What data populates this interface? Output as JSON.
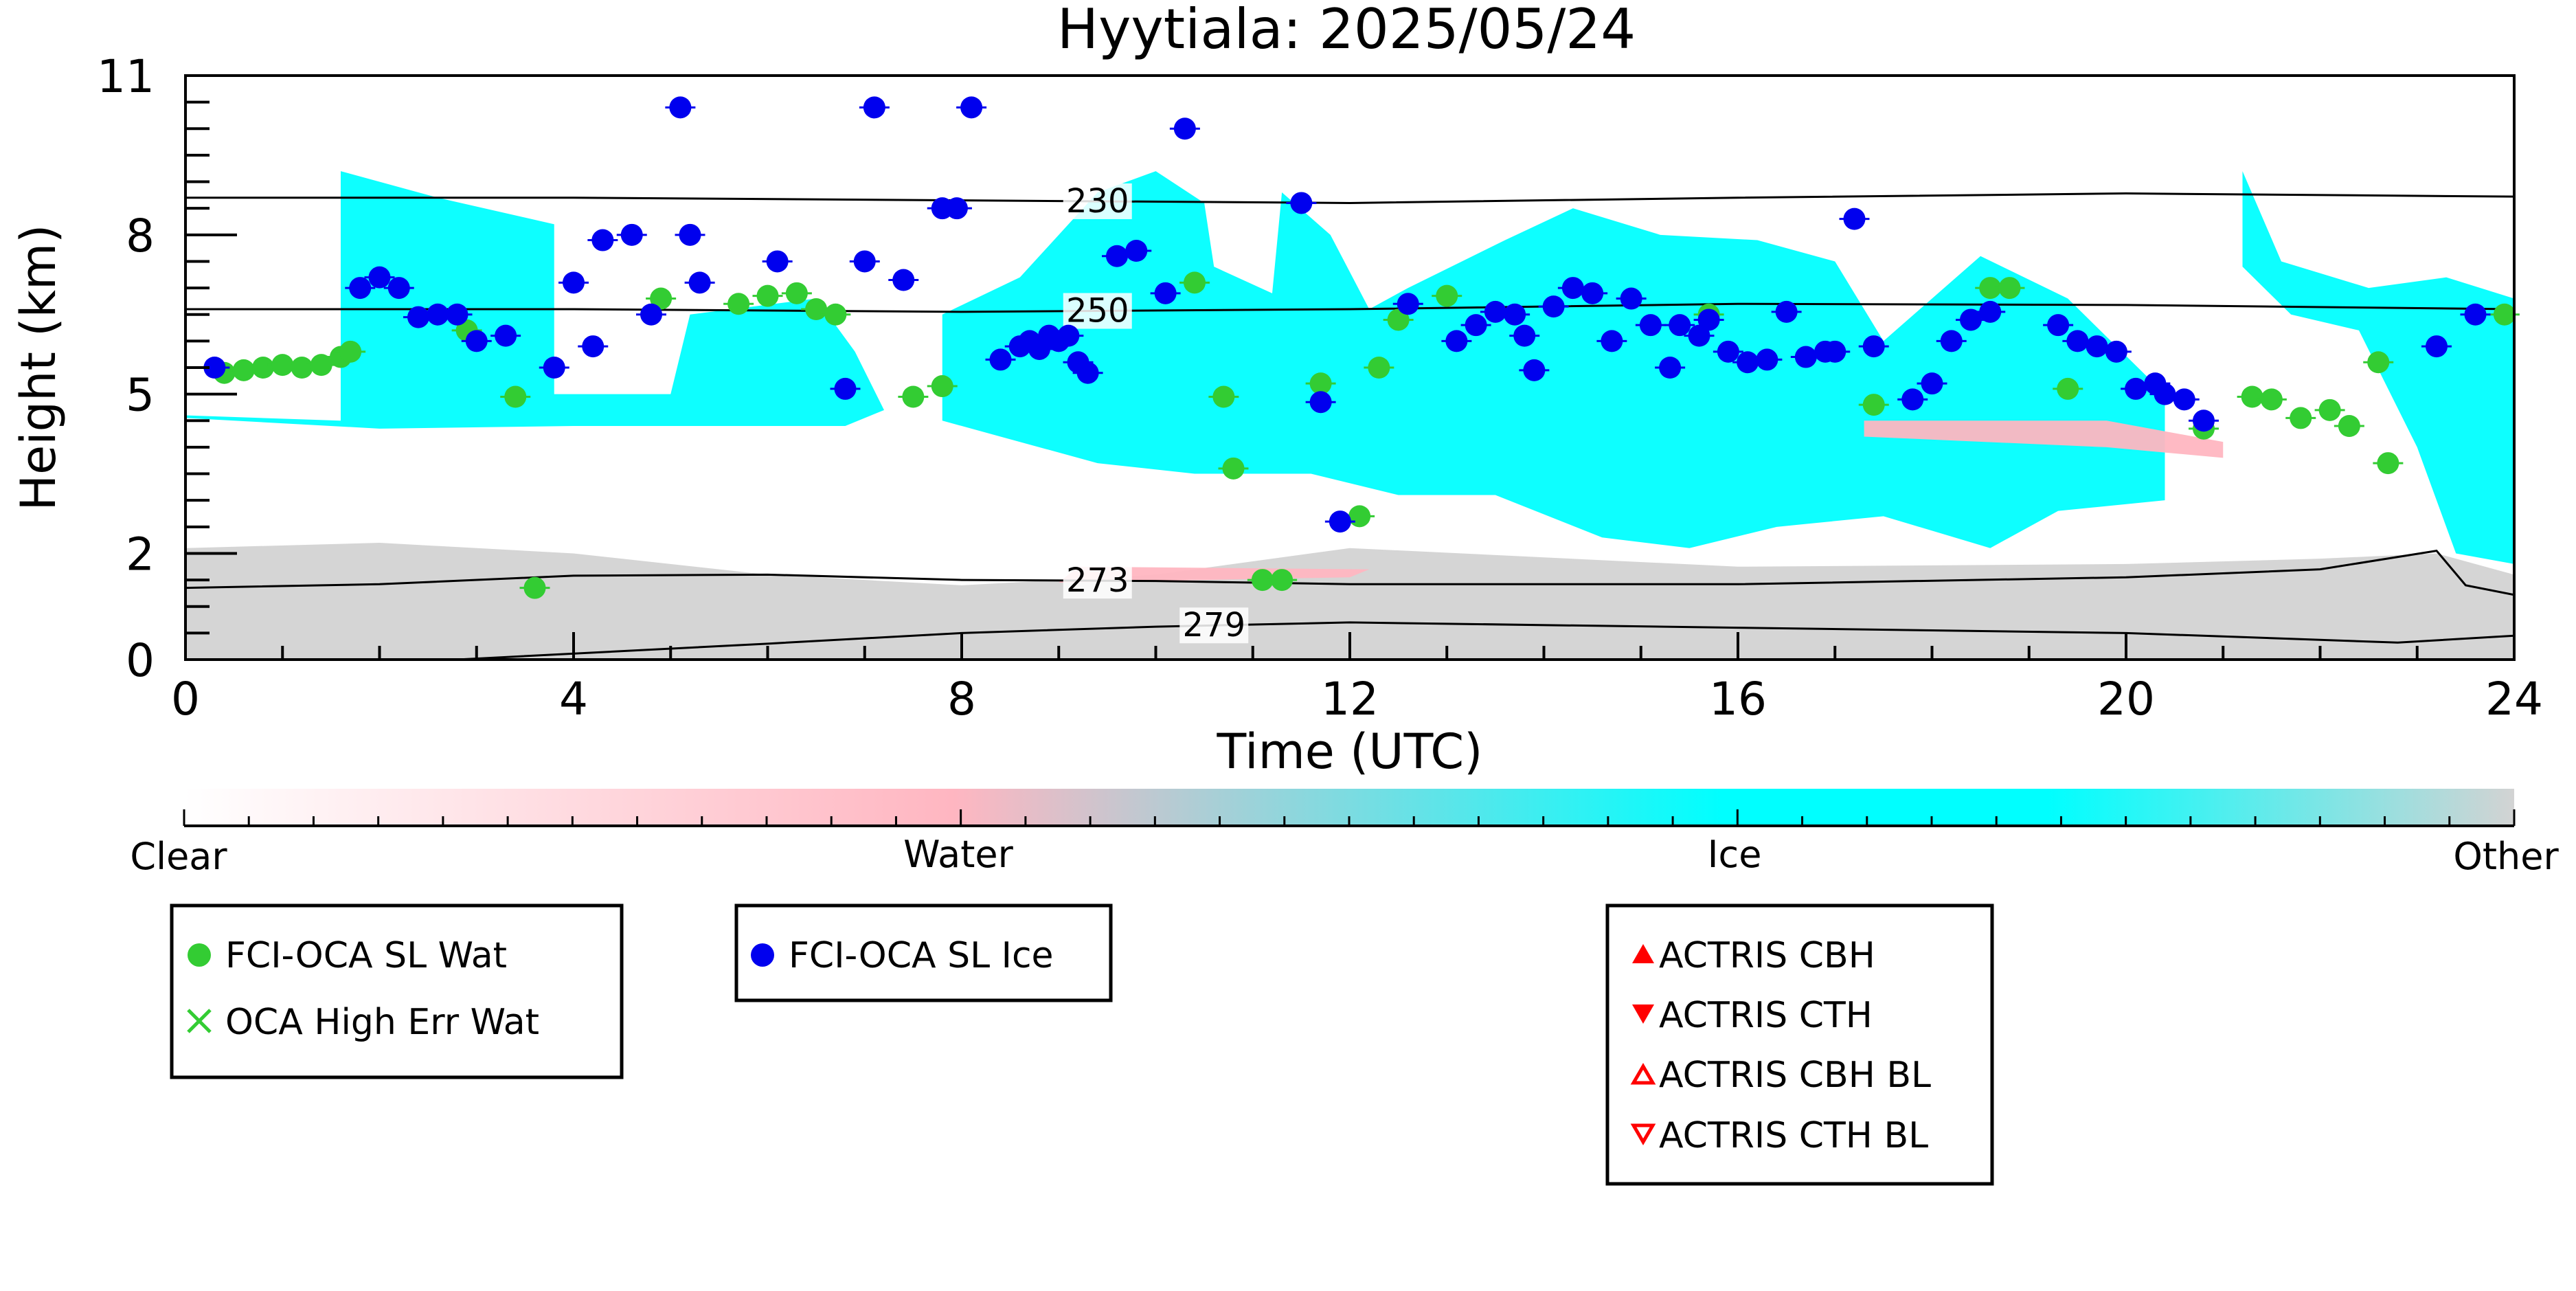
{
  "chart_data": {
    "type": "scatter",
    "title": "Hyytiala: 2025/05/24",
    "xlabel": "Time (UTC)",
    "ylabel": "Height (km)",
    "xlim": [
      0,
      24
    ],
    "ylim": [
      0,
      11
    ],
    "xticks": [
      0,
      4,
      8,
      12,
      16,
      20,
      24
    ],
    "yticks": [
      0,
      2,
      5,
      8,
      11
    ],
    "grid": false,
    "colorbar": {
      "labels": [
        "Clear",
        "Water",
        "Ice",
        "Other"
      ],
      "colors": [
        "#ffffff",
        "#ffb6c1",
        "#00ffff",
        "#d3d3d3"
      ]
    },
    "contours": [
      {
        "label": "230",
        "label_x": 9.4,
        "points": [
          [
            0,
            8.7
          ],
          [
            4,
            8.7
          ],
          [
            8,
            8.65
          ],
          [
            12,
            8.6
          ],
          [
            16,
            8.7
          ],
          [
            20,
            8.78
          ],
          [
            24,
            8.72
          ]
        ]
      },
      {
        "label": "250",
        "label_x": 9.4,
        "points": [
          [
            0,
            6.6
          ],
          [
            4,
            6.6
          ],
          [
            8,
            6.55
          ],
          [
            12,
            6.6
          ],
          [
            16,
            6.7
          ],
          [
            20,
            6.68
          ],
          [
            24,
            6.6
          ]
        ]
      },
      {
        "label": "273",
        "label_x": 9.4,
        "points": [
          [
            0,
            1.35
          ],
          [
            2,
            1.42
          ],
          [
            4,
            1.58
          ],
          [
            6,
            1.6
          ],
          [
            8,
            1.5
          ],
          [
            10,
            1.48
          ],
          [
            12,
            1.42
          ],
          [
            16,
            1.42
          ],
          [
            20,
            1.55
          ],
          [
            22,
            1.7
          ],
          [
            23.2,
            2.05
          ],
          [
            23.5,
            1.4
          ],
          [
            24,
            1.22
          ]
        ]
      },
      {
        "label": "279",
        "label_x": 10.6,
        "points": [
          [
            2.8,
            0
          ],
          [
            6,
            0.3
          ],
          [
            8,
            0.5
          ],
          [
            10,
            0.62
          ],
          [
            12,
            0.7
          ],
          [
            16,
            0.6
          ],
          [
            20,
            0.5
          ],
          [
            22.8,
            0.32
          ],
          [
            24,
            0.45
          ]
        ]
      }
    ],
    "series": [
      {
        "name": "FCI-OCA SL Wat",
        "color": "#33cc33",
        "marker": "circle",
        "points": [
          [
            0.4,
            5.4
          ],
          [
            0.6,
            5.45
          ],
          [
            0.8,
            5.5
          ],
          [
            1.0,
            5.55
          ],
          [
            1.2,
            5.5
          ],
          [
            1.4,
            5.55
          ],
          [
            1.6,
            5.7
          ],
          [
            1.7,
            5.8
          ],
          [
            2.9,
            6.2
          ],
          [
            3.4,
            4.95
          ],
          [
            3.6,
            1.35
          ],
          [
            4.9,
            6.8
          ],
          [
            5.7,
            6.7
          ],
          [
            6.0,
            6.85
          ],
          [
            6.3,
            6.9
          ],
          [
            6.5,
            6.6
          ],
          [
            6.7,
            6.5
          ],
          [
            7.5,
            4.95
          ],
          [
            7.8,
            5.15
          ],
          [
            10.4,
            7.1
          ],
          [
            10.7,
            4.95
          ],
          [
            10.8,
            3.6
          ],
          [
            11.1,
            1.5
          ],
          [
            11.3,
            1.5
          ],
          [
            11.7,
            5.2
          ],
          [
            12.1,
            2.7
          ],
          [
            12.3,
            5.5
          ],
          [
            12.5,
            6.4
          ],
          [
            13.0,
            6.85
          ],
          [
            15.7,
            6.5
          ],
          [
            17.4,
            4.8
          ],
          [
            18.6,
            7.0
          ],
          [
            18.8,
            7.0
          ],
          [
            19.4,
            5.1
          ],
          [
            20.8,
            4.35
          ],
          [
            21.3,
            4.95
          ],
          [
            21.5,
            4.9
          ],
          [
            21.8,
            4.55
          ],
          [
            22.1,
            4.7
          ],
          [
            22.3,
            4.4
          ],
          [
            22.6,
            5.6
          ],
          [
            22.7,
            3.7
          ],
          [
            23.9,
            6.5
          ]
        ]
      },
      {
        "name": "OCA High Err Wat",
        "color": "#33cc33",
        "marker": "x",
        "points": []
      },
      {
        "name": "FCI-OCA SL Ice",
        "color": "#0000ee",
        "marker": "circle",
        "points": [
          [
            0.3,
            5.5
          ],
          [
            1.8,
            7.0
          ],
          [
            2.0,
            7.2
          ],
          [
            2.2,
            7.0
          ],
          [
            2.4,
            6.45
          ],
          [
            2.6,
            6.5
          ],
          [
            2.8,
            6.5
          ],
          [
            3.0,
            6.0
          ],
          [
            3.3,
            6.1
          ],
          [
            3.8,
            5.5
          ],
          [
            4.0,
            7.1
          ],
          [
            4.2,
            5.9
          ],
          [
            4.3,
            7.9
          ],
          [
            4.6,
            8.0
          ],
          [
            4.8,
            6.5
          ],
          [
            5.1,
            10.4
          ],
          [
            5.2,
            8.0
          ],
          [
            5.3,
            7.1
          ],
          [
            6.1,
            7.5
          ],
          [
            6.8,
            5.1
          ],
          [
            7.0,
            7.5
          ],
          [
            7.1,
            10.4
          ],
          [
            7.4,
            7.15
          ],
          [
            7.8,
            8.5
          ],
          [
            7.95,
            8.5
          ],
          [
            8.1,
            10.4
          ],
          [
            8.4,
            5.65
          ],
          [
            8.6,
            5.9
          ],
          [
            8.7,
            6.0
          ],
          [
            8.8,
            5.85
          ],
          [
            8.9,
            6.1
          ],
          [
            9.0,
            6.0
          ],
          [
            9.1,
            6.1
          ],
          [
            9.2,
            5.6
          ],
          [
            9.3,
            5.4
          ],
          [
            9.6,
            7.6
          ],
          [
            9.8,
            7.7
          ],
          [
            10.1,
            6.9
          ],
          [
            10.3,
            10.0
          ],
          [
            11.5,
            8.6
          ],
          [
            11.7,
            4.85
          ],
          [
            11.9,
            2.6
          ],
          [
            12.6,
            6.7
          ],
          [
            13.1,
            6.0
          ],
          [
            13.3,
            6.3
          ],
          [
            13.5,
            6.55
          ],
          [
            13.7,
            6.5
          ],
          [
            13.8,
            6.1
          ],
          [
            13.9,
            5.45
          ],
          [
            14.1,
            6.65
          ],
          [
            14.3,
            7.0
          ],
          [
            14.5,
            6.9
          ],
          [
            14.7,
            6.0
          ],
          [
            14.9,
            6.8
          ],
          [
            15.1,
            6.3
          ],
          [
            15.3,
            5.5
          ],
          [
            15.4,
            6.3
          ],
          [
            15.6,
            6.1
          ],
          [
            15.7,
            6.4
          ],
          [
            15.9,
            5.8
          ],
          [
            16.1,
            5.6
          ],
          [
            16.3,
            5.65
          ],
          [
            16.5,
            6.55
          ],
          [
            16.7,
            5.7
          ],
          [
            16.9,
            5.8
          ],
          [
            17.0,
            5.8
          ],
          [
            17.2,
            8.3
          ],
          [
            17.4,
            5.9
          ],
          [
            17.8,
            4.9
          ],
          [
            18.0,
            5.2
          ],
          [
            18.2,
            6.0
          ],
          [
            18.4,
            6.4
          ],
          [
            18.6,
            6.55
          ],
          [
            19.3,
            6.3
          ],
          [
            19.5,
            6.0
          ],
          [
            19.7,
            5.9
          ],
          [
            19.9,
            5.8
          ],
          [
            20.1,
            5.1
          ],
          [
            20.3,
            5.2
          ],
          [
            20.4,
            5.0
          ],
          [
            20.6,
            4.9
          ],
          [
            20.8,
            4.5
          ],
          [
            23.2,
            5.9
          ],
          [
            23.6,
            6.5
          ]
        ]
      },
      {
        "name": "ACTRIS CBH",
        "color": "#ff0000",
        "marker": "triangle-up",
        "points": []
      },
      {
        "name": "ACTRIS CTH",
        "color": "#ff0000",
        "marker": "triangle-down",
        "points": []
      },
      {
        "name": "ACTRIS CBH BL",
        "color": "#ff0000",
        "marker": "triangle-up-open",
        "points": []
      },
      {
        "name": "ACTRIS CTH BL",
        "color": "#ff0000",
        "marker": "triangle-down-open",
        "points": []
      }
    ],
    "legends": [
      {
        "position": "bottom-left",
        "entries": [
          "FCI-OCA SL Wat",
          "OCA High Err Wat"
        ]
      },
      {
        "position": "bottom-center-left",
        "entries": [
          "FCI-OCA SL Ice"
        ]
      },
      {
        "position": "bottom-center-right",
        "entries": [
          "ACTRIS CBH",
          "ACTRIS CTH",
          "ACTRIS CBH BL",
          "ACTRIS CTH BL"
        ]
      }
    ]
  }
}
